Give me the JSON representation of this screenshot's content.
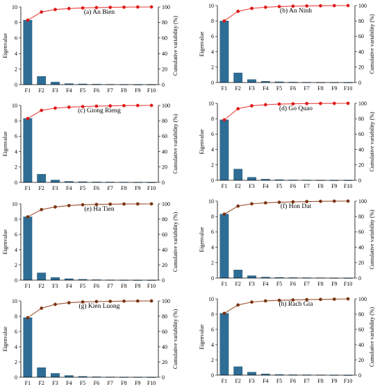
{
  "colors": {
    "bar": "#2e6e96",
    "bar_edge": "#1d5070",
    "line_red": "#e8413c",
    "marker_red": "#e01818",
    "line_brown": "#9a4f2a",
    "marker_brown": "#7a3415",
    "axis": "#000000"
  },
  "chart_data": [
    {
      "type": "bar",
      "title": "(a) An Bien",
      "categories": [
        "F1",
        "F2",
        "F3",
        "F4",
        "F5",
        "F6",
        "F7",
        "F8",
        "F9",
        "F10"
      ],
      "ylabel": "Eigenvalue",
      "y2label": "Cumulative variability (%)",
      "ylim": [
        0,
        10
      ],
      "y2lim": [
        0,
        100
      ],
      "yticks": [
        0,
        2,
        4,
        6,
        8,
        10
      ],
      "y2ticks": [
        0,
        20,
        40,
        60,
        80,
        100
      ],
      "line_style": "red",
      "series": [
        {
          "values": [
            8.3,
            1.05,
            0.32,
            0.12,
            0.08,
            0.05,
            0.03,
            0.02,
            0.01,
            0.01
          ]
        },
        {
          "values": [
            83.0,
            93.5,
            96.7,
            97.9,
            98.7,
            99.2,
            99.5,
            99.7,
            99.9,
            100.0
          ]
        }
      ]
    },
    {
      "type": "bar",
      "title": "(b) An Ninh",
      "categories": [
        "F1",
        "F2",
        "F3",
        "F4",
        "F5",
        "F6",
        "F7",
        "F8",
        "F9",
        "F10"
      ],
      "ylabel": "Eigenvalue",
      "y2label": "Cumulative variability (%)",
      "ylim": [
        0,
        10
      ],
      "y2lim": [
        0,
        100
      ],
      "yticks": [
        0,
        2,
        4,
        6,
        8,
        10
      ],
      "y2ticks": [
        0,
        20,
        40,
        60,
        80,
        100
      ],
      "line_style": "red",
      "series": [
        {
          "values": [
            8.0,
            1.25,
            0.38,
            0.15,
            0.09,
            0.05,
            0.03,
            0.02,
            0.02,
            0.01
          ]
        },
        {
          "values": [
            80.0,
            92.5,
            96.3,
            97.8,
            98.7,
            99.2,
            99.5,
            99.7,
            99.9,
            100.0
          ]
        }
      ]
    },
    {
      "type": "bar",
      "title": "(c) Giong Rieng",
      "categories": [
        "F1",
        "F2",
        "F3",
        "F4",
        "F5",
        "F6",
        "F7",
        "F8",
        "F9",
        "F10"
      ],
      "ylabel": "Eigenvalue",
      "y2label": "Cumulative variability (%)",
      "ylim": [
        0,
        10
      ],
      "y2lim": [
        0,
        100
      ],
      "yticks": [
        0,
        2,
        4,
        6,
        8,
        10
      ],
      "y2ticks": [
        0,
        20,
        40,
        60,
        80,
        100
      ],
      "line_style": "red",
      "series": [
        {
          "values": [
            8.3,
            1.05,
            0.3,
            0.12,
            0.08,
            0.05,
            0.04,
            0.03,
            0.02,
            0.01
          ]
        },
        {
          "values": [
            83.0,
            93.5,
            96.5,
            97.7,
            98.5,
            99.0,
            99.4,
            99.7,
            99.9,
            100.0
          ]
        }
      ]
    },
    {
      "type": "bar",
      "title": "(d) Go Quao",
      "categories": [
        "F1",
        "F2",
        "F3",
        "F4",
        "F5",
        "F6",
        "F7",
        "F8",
        "F9",
        "F10"
      ],
      "ylabel": "Eigenvalue",
      "y2label": "Cumulative variability (%)",
      "ylim": [
        0,
        10
      ],
      "y2lim": [
        0,
        100
      ],
      "yticks": [
        0,
        2,
        4,
        6,
        8,
        10
      ],
      "y2ticks": [
        0,
        20,
        40,
        60,
        80,
        100
      ],
      "line_style": "red",
      "series": [
        {
          "values": [
            7.85,
            1.45,
            0.38,
            0.14,
            0.08,
            0.04,
            0.03,
            0.02,
            0.01,
            0.01
          ]
        },
        {
          "values": [
            78.5,
            93.0,
            96.8,
            98.2,
            99.0,
            99.4,
            99.7,
            99.8,
            99.9,
            100.0
          ]
        }
      ]
    },
    {
      "type": "bar",
      "title": "(e) Ha Tien",
      "categories": [
        "F1",
        "F2",
        "F3",
        "F4",
        "F5",
        "F6",
        "F7",
        "F8",
        "F9",
        "F10"
      ],
      "ylabel": "Eigenvalue",
      "y2label": "Cumulative variability (%)",
      "ylim": [
        0,
        10
      ],
      "y2lim": [
        0,
        100
      ],
      "yticks": [
        0,
        2,
        4,
        6,
        8,
        10
      ],
      "y2ticks": [
        0,
        20,
        40,
        60,
        80,
        100
      ],
      "line_style": "brown",
      "series": [
        {
          "values": [
            8.3,
            0.95,
            0.35,
            0.18,
            0.1,
            0.05,
            0.03,
            0.02,
            0.01,
            0.01
          ]
        },
        {
          "values": [
            83.0,
            92.5,
            96.0,
            97.8,
            98.8,
            99.3,
            99.6,
            99.8,
            99.9,
            100.0
          ]
        }
      ]
    },
    {
      "type": "bar",
      "title": "(f) Hon Dat",
      "categories": [
        "F1",
        "F2",
        "F3",
        "F4",
        "F5",
        "F6",
        "F7",
        "F8",
        "F9",
        "F10"
      ],
      "ylabel": "Eigenvalue",
      "y2label": "Cumulative variability (%)",
      "ylim": [
        0,
        10
      ],
      "y2lim": [
        0,
        100
      ],
      "yticks": [
        0,
        2,
        4,
        6,
        8,
        10
      ],
      "y2ticks": [
        0,
        20,
        40,
        60,
        80,
        100
      ],
      "line_style": "brown",
      "series": [
        {
          "values": [
            8.3,
            1.05,
            0.3,
            0.12,
            0.08,
            0.05,
            0.04,
            0.03,
            0.02,
            0.01
          ]
        },
        {
          "values": [
            83.0,
            93.5,
            96.5,
            97.7,
            98.5,
            99.0,
            99.4,
            99.7,
            99.9,
            100.0
          ]
        }
      ]
    },
    {
      "type": "bar",
      "title": "(g) Kien Luong",
      "categories": [
        "F1",
        "F2",
        "F3",
        "F4",
        "F5",
        "F6",
        "F7",
        "F8",
        "F9",
        "F10"
      ],
      "ylabel": "Eigenvalue",
      "y2label": "Cumulative variability (%)",
      "ylim": [
        0,
        10
      ],
      "y2lim": [
        0,
        100
      ],
      "yticks": [
        0,
        2,
        4,
        6,
        8,
        10
      ],
      "y2ticks": [
        0,
        20,
        40,
        60,
        80,
        100
      ],
      "line_style": "brown",
      "series": [
        {
          "values": [
            7.8,
            1.25,
            0.5,
            0.22,
            0.1,
            0.05,
            0.03,
            0.02,
            0.02,
            0.01
          ]
        },
        {
          "values": [
            78.0,
            90.5,
            95.5,
            97.7,
            98.7,
            99.2,
            99.5,
            99.7,
            99.9,
            100.0
          ]
        }
      ]
    },
    {
      "type": "bar",
      "title": "(h) Rach Gia",
      "categories": [
        "F1",
        "F2",
        "F3",
        "F4",
        "F5",
        "F6",
        "F7",
        "F8",
        "F9",
        "F10"
      ],
      "ylabel": "Eigenvalue",
      "y2label": "Cumulative variability (%)",
      "ylim": [
        0,
        10
      ],
      "y2lim": [
        0,
        100
      ],
      "yticks": [
        0,
        2,
        4,
        6,
        8,
        10
      ],
      "y2ticks": [
        0,
        20,
        40,
        60,
        80,
        100
      ],
      "line_style": "brown",
      "series": [
        {
          "values": [
            8.1,
            1.1,
            0.38,
            0.15,
            0.08,
            0.05,
            0.04,
            0.03,
            0.02,
            0.01
          ]
        },
        {
          "values": [
            81.0,
            92.0,
            95.8,
            97.3,
            98.1,
            98.6,
            99.0,
            99.3,
            99.6,
            100.0
          ]
        }
      ]
    }
  ]
}
